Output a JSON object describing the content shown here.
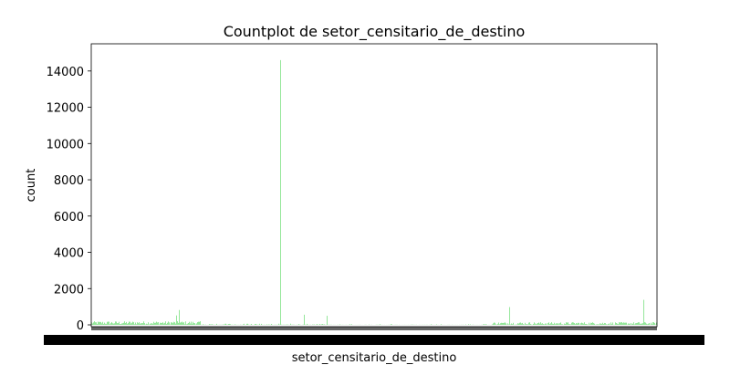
{
  "chart_data": {
    "type": "bar",
    "title": "Countplot de setor_censitario_de_destino",
    "xlabel": "setor_censitario_de_destino",
    "ylabel": "count",
    "ylim": [
      0,
      15500
    ],
    "yticks": [
      0,
      2000,
      4000,
      6000,
      8000,
      10000,
      12000,
      14000
    ],
    "y_tick_labels": [
      "0",
      "2000",
      "4000",
      "6000",
      "8000",
      "10000",
      "12000",
      "14000"
    ],
    "grid": false,
    "legend": "none",
    "bar_color": "#7be082",
    "n_categories": 620,
    "x_tick_labels_note": "unreadable: overlapping category labels",
    "notable_bars": [
      {
        "index": 207,
        "value": 14600
      },
      {
        "index": 605,
        "value": 1380
      },
      {
        "index": 458,
        "value": 980
      },
      {
        "index": 233,
        "value": 560
      },
      {
        "index": 258,
        "value": 500
      },
      {
        "index": 96,
        "value": 820
      },
      {
        "index": 93,
        "value": 520
      }
    ]
  }
}
